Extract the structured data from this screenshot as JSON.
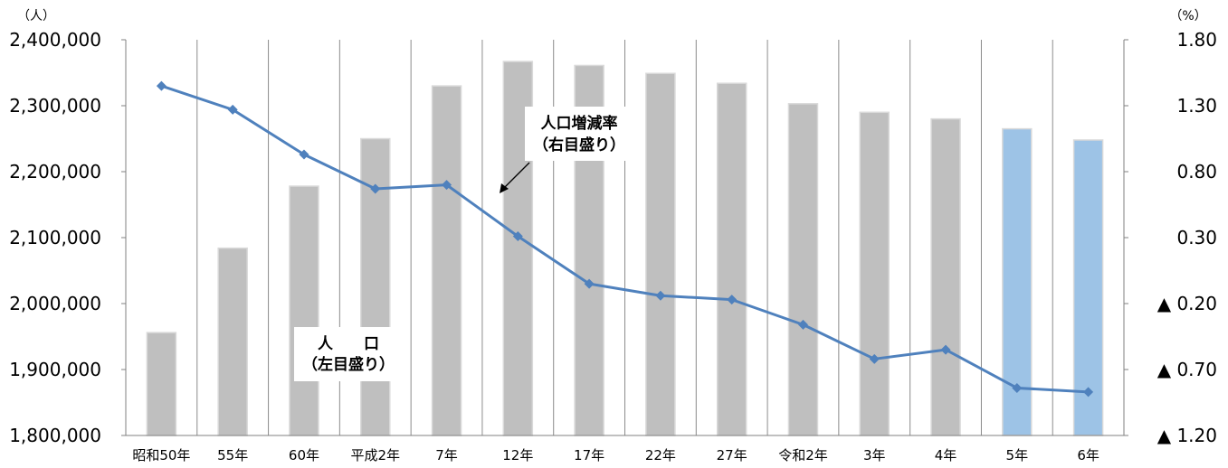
{
  "chart_data": {
    "type": "bar+line",
    "categories": [
      "昭和50年",
      "55年",
      "60年",
      "平成2年",
      "7年",
      "12年",
      "17年",
      "22年",
      "27年",
      "令和2年",
      "3年",
      "4年",
      "5年",
      "6年"
    ],
    "series": [
      {
        "name": "人　　口",
        "axis": "left",
        "kind": "bar",
        "values": [
          1956000,
          2084000,
          2178000,
          2250000,
          2330000,
          2367000,
          2361000,
          2349000,
          2334000,
          2303000,
          2290000,
          2280000,
          2265000,
          2248000
        ],
        "colors": [
          "#bfbfbf",
          "#bfbfbf",
          "#bfbfbf",
          "#bfbfbf",
          "#bfbfbf",
          "#bfbfbf",
          "#bfbfbf",
          "#bfbfbf",
          "#bfbfbf",
          "#bfbfbf",
          "#bfbfbf",
          "#bfbfbf",
          "#9dc3e6",
          "#9dc3e6"
        ]
      },
      {
        "name": "人口増減率",
        "axis": "right",
        "kind": "line",
        "color": "#4f81bd",
        "values": [
          1.45,
          1.27,
          0.93,
          0.67,
          0.7,
          0.31,
          -0.05,
          -0.14,
          -0.17,
          -0.36,
          -0.62,
          -0.55,
          -0.84,
          -0.87
        ]
      }
    ],
    "left_axis": {
      "unit_label": "（人）",
      "ylim": [
        1800000,
        2400000
      ],
      "ticks": [
        1800000,
        1900000,
        2000000,
        2100000,
        2200000,
        2300000,
        2400000
      ],
      "tick_labels": [
        "1,800,000",
        "1,900,000",
        "2,000,000",
        "2,100,000",
        "2,200,000",
        "2,300,000",
        "2,400,000"
      ]
    },
    "right_axis": {
      "unit_label": "（%）",
      "ylim": [
        -1.2,
        1.8
      ],
      "ticks": [
        -1.2,
        -0.7,
        -0.2,
        0.3,
        0.8,
        1.3,
        1.8
      ],
      "tick_labels": [
        "▲ 1.20",
        "▲ 0.70",
        "▲ 0.20",
        "0.30",
        "0.80",
        "1.30",
        "1.80"
      ]
    },
    "annotations": {
      "population": [
        "人　　口",
        "（左目盛り）"
      ],
      "rate": [
        "人口増減率",
        "（右目盛り）"
      ]
    },
    "grid": "vertical",
    "legend": "none"
  }
}
